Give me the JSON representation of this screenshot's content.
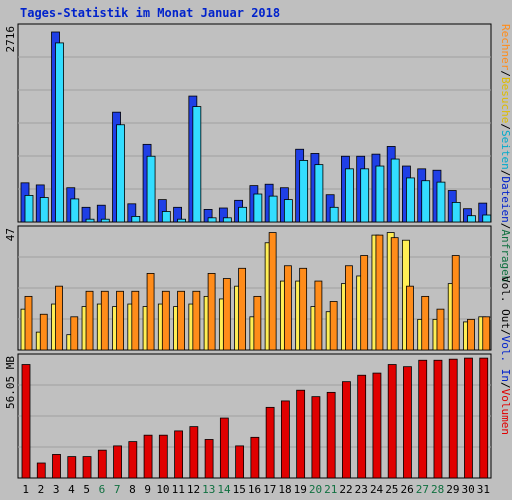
{
  "title": "Tages-Statistik im Monat Januar 2018",
  "colors": {
    "background": "#bfbfbf",
    "plot_bg": "#c0c0c0",
    "anfragen": "#1f3fe6",
    "dateien": "#33ddff",
    "seiten": "#33ddff",
    "besuche": "#ffee55",
    "rechner": "#ff8c1a",
    "volumen": "#e00000",
    "weekend_label": "#107040",
    "weekday_label": "#000000"
  },
  "legend_top": [
    "Anfragen",
    "/",
    "Dateien",
    "/",
    "Seiten",
    "/",
    "Besuche",
    "/",
    "Rechner"
  ],
  "legend_bottom": [
    "Vol. Out",
    "/",
    "Vol. In",
    "/",
    "Volumen"
  ],
  "chart_data": [
    {
      "type": "bar",
      "panel": "hits",
      "ymax_label": "2716",
      "ylim": [
        0,
        2716
      ],
      "categories": [
        "1",
        "2",
        "3",
        "4",
        "5",
        "6",
        "7",
        "8",
        "9",
        "10",
        "11",
        "12",
        "13",
        "14",
        "15",
        "16",
        "17",
        "18",
        "19",
        "20",
        "21",
        "22",
        "23",
        "24",
        "25",
        "26",
        "27",
        "28",
        "29",
        "30",
        "31"
      ],
      "series": [
        {
          "name": "Anfragen",
          "values": [
            560,
            530,
            2716,
            490,
            210,
            240,
            1570,
            260,
            1110,
            320,
            210,
            1800,
            180,
            200,
            310,
            520,
            540,
            490,
            1040,
            980,
            390,
            940,
            940,
            970,
            1080,
            800,
            760,
            740,
            450,
            190,
            270
          ]
        },
        {
          "name": "Dateien",
          "values": [
            380,
            350,
            2560,
            330,
            40,
            40,
            1390,
            80,
            940,
            150,
            40,
            1650,
            60,
            60,
            210,
            400,
            370,
            320,
            880,
            820,
            210,
            760,
            760,
            800,
            900,
            630,
            590,
            570,
            280,
            90,
            100
          ]
        }
      ]
    },
    {
      "type": "bar",
      "panel": "visits",
      "ymax_label": "47",
      "ylim": [
        0,
        47
      ],
      "categories": [
        "1",
        "2",
        "3",
        "4",
        "5",
        "6",
        "7",
        "8",
        "9",
        "10",
        "11",
        "12",
        "13",
        "14",
        "15",
        "16",
        "17",
        "18",
        "19",
        "20",
        "21",
        "22",
        "23",
        "24",
        "25",
        "26",
        "27",
        "28",
        "29",
        "30",
        "31"
      ],
      "series": [
        {
          "name": "Besuche",
          "values": [
            16,
            7,
            18,
            6,
            17,
            18,
            17,
            18,
            17,
            18,
            17,
            18,
            21,
            20,
            25,
            13,
            42,
            27,
            27,
            17,
            15,
            26,
            29,
            45,
            46,
            43,
            12,
            12,
            26,
            11,
            13
          ]
        },
        {
          "name": "Rechner",
          "values": [
            21,
            14,
            25,
            13,
            23,
            23,
            23,
            23,
            30,
            23,
            23,
            23,
            30,
            28,
            32,
            21,
            46,
            33,
            32,
            27,
            19,
            33,
            37,
            45,
            44,
            25,
            21,
            16,
            37,
            12,
            13
          ]
        }
      ]
    },
    {
      "type": "bar",
      "panel": "volume",
      "ymax_label": "56.05 MB",
      "ylim": [
        0,
        56.05
      ],
      "categories": [
        "1",
        "2",
        "3",
        "4",
        "5",
        "6",
        "7",
        "8",
        "9",
        "10",
        "11",
        "12",
        "13",
        "14",
        "15",
        "16",
        "17",
        "18",
        "19",
        "20",
        "21",
        "22",
        "23",
        "24",
        "25",
        "26",
        "27",
        "28",
        "29",
        "30",
        "31"
      ],
      "series": [
        {
          "name": "Volumen",
          "values": [
            53,
            7,
            11,
            10,
            10,
            13,
            15,
            17,
            20,
            20,
            22,
            24,
            18,
            28,
            15,
            19,
            33,
            36,
            41,
            38,
            40,
            45,
            48,
            49,
            53,
            52,
            55,
            55,
            55.5,
            56,
            56
          ]
        }
      ]
    }
  ],
  "weekend_days": [
    "6",
    "7",
    "13",
    "14",
    "20",
    "21",
    "27",
    "28"
  ]
}
